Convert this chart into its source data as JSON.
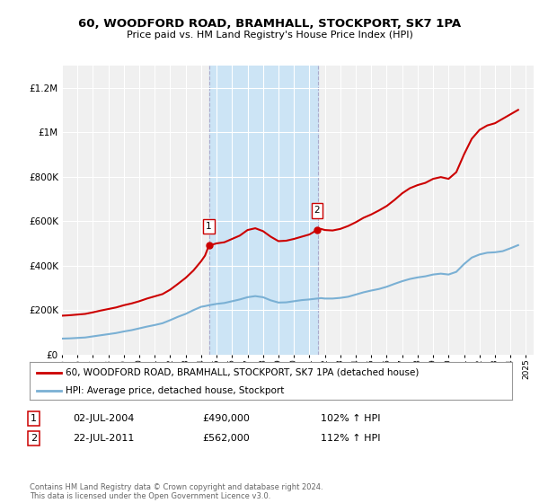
{
  "title": "60, WOODFORD ROAD, BRAMHALL, STOCKPORT, SK7 1PA",
  "subtitle": "Price paid vs. HM Land Registry's House Price Index (HPI)",
  "red_label": "60, WOODFORD ROAD, BRAMHALL, STOCKPORT, SK7 1PA (detached house)",
  "blue_label": "HPI: Average price, detached house, Stockport",
  "sale1_date": "02-JUL-2004",
  "sale1_price": "£490,000",
  "sale1_hpi": "102% ↑ HPI",
  "sale2_date": "22-JUL-2011",
  "sale2_price": "£562,000",
  "sale2_hpi": "112% ↑ HPI",
  "copyright": "Contains HM Land Registry data © Crown copyright and database right 2024.\nThis data is licensed under the Open Government Licence v3.0.",
  "bg_color": "#ffffff",
  "plot_bg": "#f0f0f0",
  "shade_color": "#cce4f5",
  "red_color": "#cc0000",
  "blue_color": "#7ab0d4",
  "xlim_min": 1995.0,
  "xlim_max": 2025.5,
  "ylim_min": 0,
  "ylim_max": 1300000,
  "sale1_x": 2004.5,
  "sale2_x": 2011.55,
  "years_red": [
    1995,
    1995.5,
    1996,
    1996.5,
    1997,
    1997.5,
    1998,
    1998.5,
    1999,
    1999.5,
    2000,
    2000.5,
    2001,
    2001.5,
    2002,
    2002.5,
    2003,
    2003.5,
    2004,
    2004.25,
    2004.5,
    2004.75,
    2005,
    2005.5,
    2006,
    2006.5,
    2007,
    2007.5,
    2008,
    2008.5,
    2009,
    2009.5,
    2010,
    2010.5,
    2011,
    2011.25,
    2011.5,
    2011.75,
    2012,
    2012.5,
    2013,
    2013.5,
    2014,
    2014.5,
    2015,
    2015.5,
    2016,
    2016.5,
    2017,
    2017.5,
    2018,
    2018.5,
    2019,
    2019.5,
    2020,
    2020.5,
    2021,
    2021.5,
    2022,
    2022.5,
    2023,
    2023.5,
    2024,
    2024.5
  ],
  "vals_red": [
    175000,
    177000,
    180000,
    183000,
    190000,
    198000,
    205000,
    212000,
    222000,
    230000,
    240000,
    252000,
    262000,
    272000,
    292000,
    318000,
    345000,
    378000,
    420000,
    445000,
    490000,
    495000,
    500000,
    505000,
    520000,
    535000,
    560000,
    568000,
    555000,
    530000,
    510000,
    512000,
    520000,
    530000,
    540000,
    550000,
    562000,
    565000,
    560000,
    558000,
    565000,
    578000,
    595000,
    615000,
    630000,
    648000,
    668000,
    695000,
    725000,
    748000,
    762000,
    772000,
    790000,
    798000,
    790000,
    820000,
    900000,
    970000,
    1010000,
    1030000,
    1040000,
    1060000,
    1080000,
    1100000
  ],
  "years_blue": [
    1995,
    1995.5,
    1996,
    1996.5,
    1997,
    1997.5,
    1998,
    1998.5,
    1999,
    1999.5,
    2000,
    2000.5,
    2001,
    2001.5,
    2002,
    2002.5,
    2003,
    2003.5,
    2004,
    2004.25,
    2004.5,
    2004.75,
    2005,
    2005.5,
    2006,
    2006.5,
    2007,
    2007.5,
    2008,
    2008.5,
    2009,
    2009.5,
    2010,
    2010.5,
    2011,
    2011.25,
    2011.5,
    2011.75,
    2012,
    2012.5,
    2013,
    2013.5,
    2014,
    2014.5,
    2015,
    2015.5,
    2016,
    2016.5,
    2017,
    2017.5,
    2018,
    2018.5,
    2019,
    2019.5,
    2020,
    2020.5,
    2021,
    2021.5,
    2022,
    2022.5,
    2023,
    2023.5,
    2024,
    2024.5
  ],
  "vals_blue": [
    72000,
    73000,
    75000,
    77000,
    82000,
    87000,
    92000,
    97000,
    104000,
    110000,
    118000,
    126000,
    133000,
    141000,
    155000,
    170000,
    183000,
    200000,
    215000,
    218000,
    222000,
    225000,
    228000,
    232000,
    240000,
    248000,
    258000,
    263000,
    258000,
    244000,
    234000,
    235000,
    240000,
    245000,
    248000,
    250000,
    252000,
    254000,
    252000,
    252000,
    255000,
    260000,
    270000,
    280000,
    288000,
    295000,
    305000,
    318000,
    330000,
    340000,
    347000,
    352000,
    360000,
    364000,
    360000,
    372000,
    407000,
    436000,
    450000,
    458000,
    460000,
    465000,
    478000,
    492000
  ]
}
